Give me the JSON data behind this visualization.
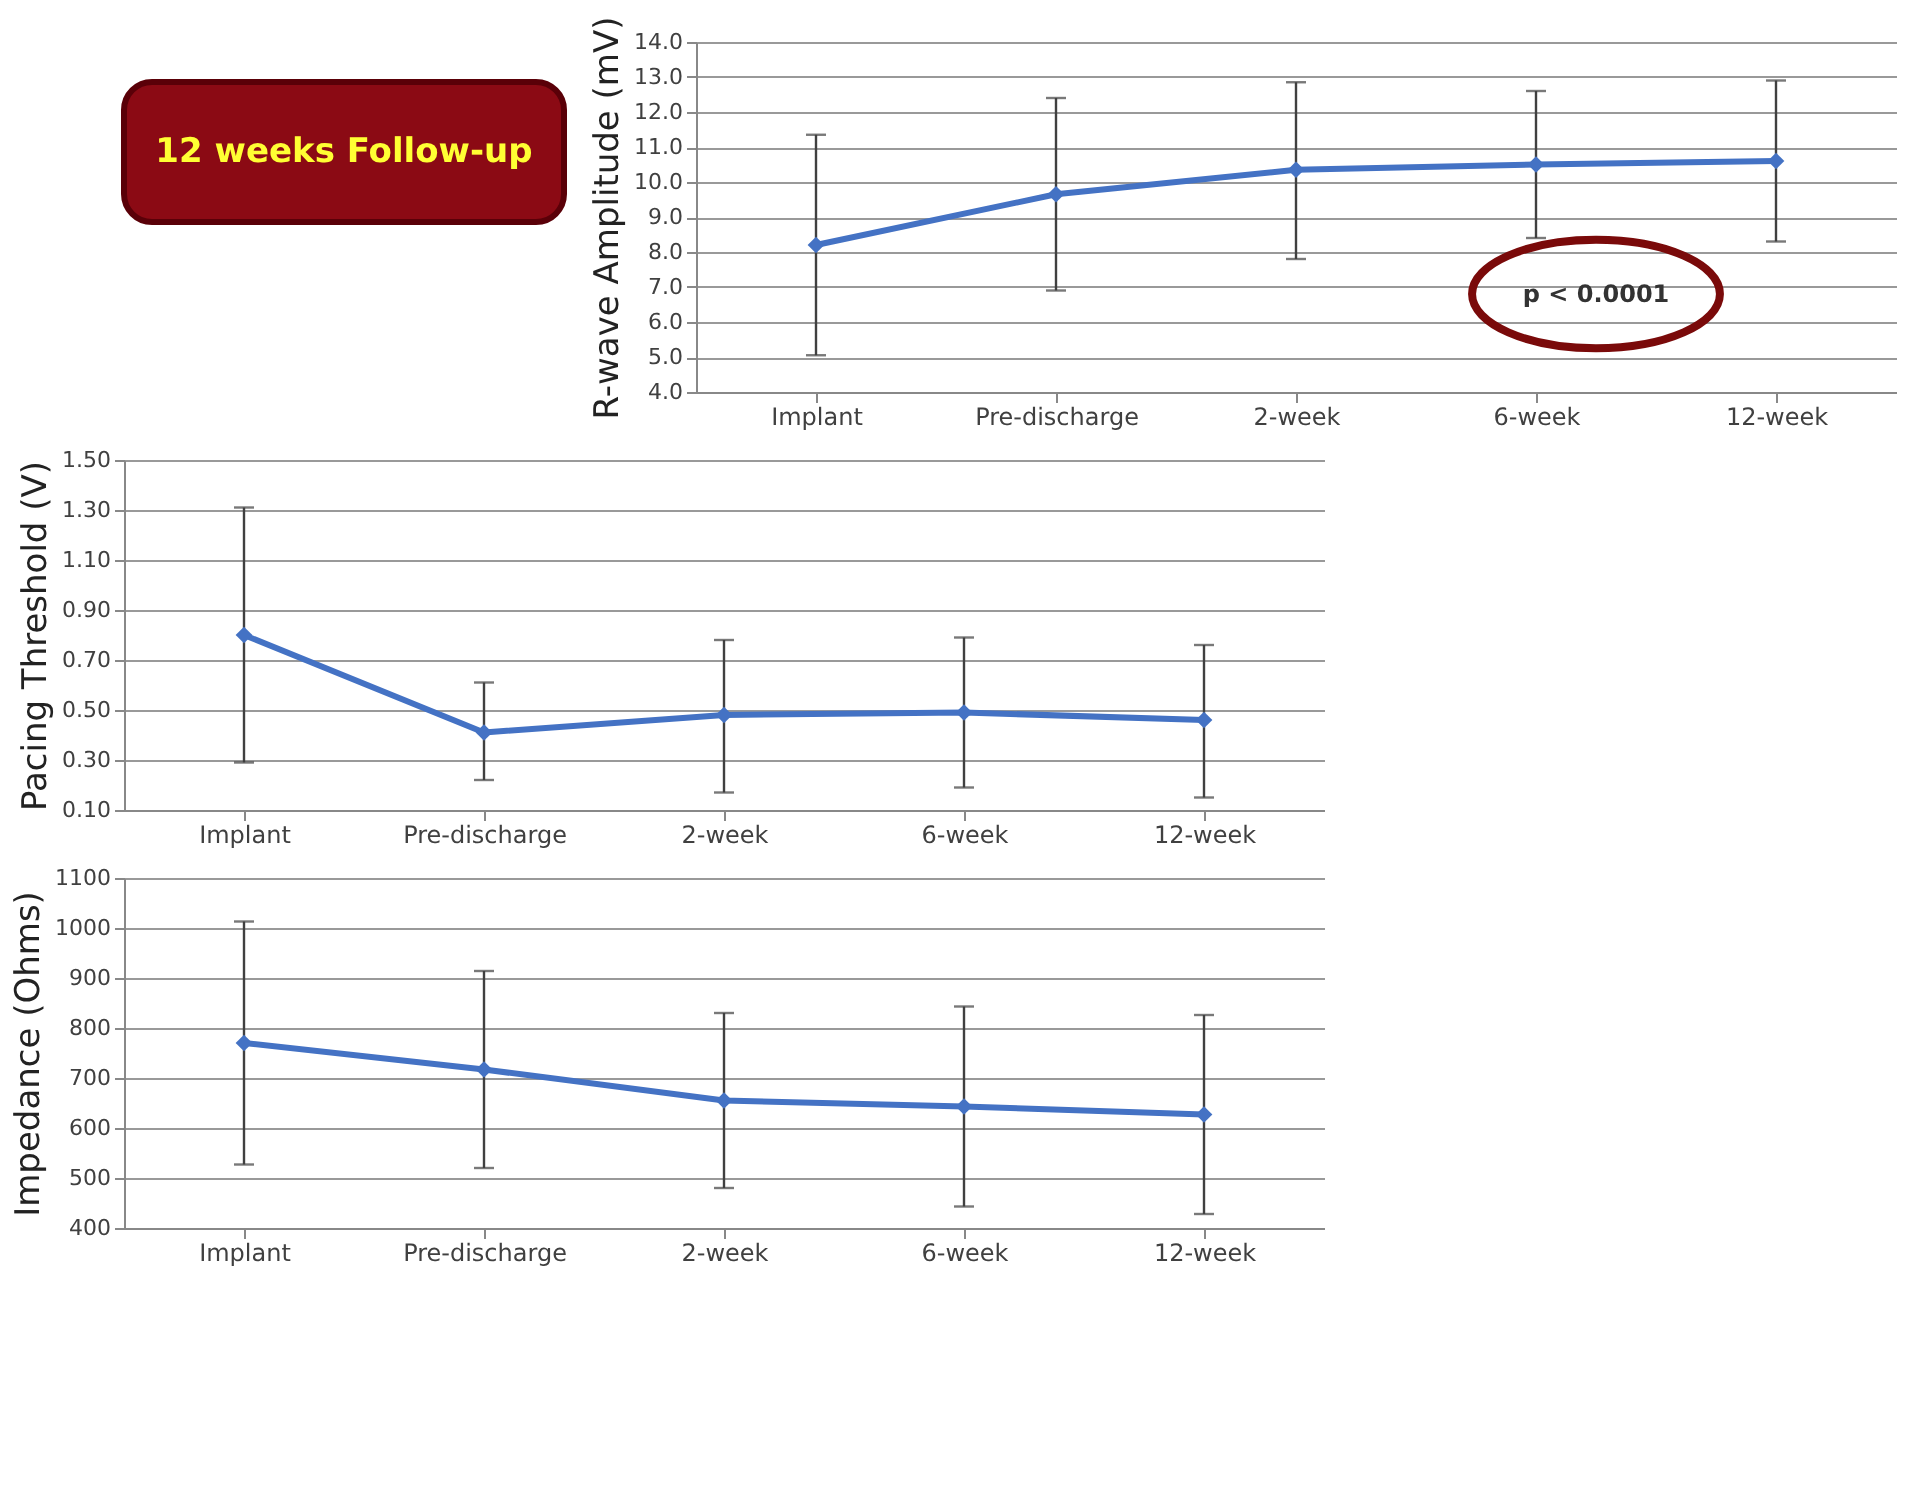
{
  "chart_data": [
    {
      "type": "line",
      "ylabel": "R-wave Amplitude  (mV)",
      "categories": [
        "Implant",
        "Pre-discharge",
        "2-week",
        "6-week",
        "12-week"
      ],
      "values": [
        8.2,
        9.65,
        10.35,
        10.5,
        10.6
      ],
      "errors": [
        [
          5.05,
          11.35
        ],
        [
          6.9,
          12.4
        ],
        [
          7.8,
          12.85
        ],
        [
          8.4,
          12.6
        ],
        [
          8.3,
          12.9
        ]
      ],
      "color": "#4472c4",
      "marker": "diamond",
      "ylim": [
        4,
        14
      ],
      "yticks": [
        {
          "value": 4,
          "label": "4.0"
        },
        {
          "value": 5,
          "label": "5.0"
        },
        {
          "value": 6,
          "label": "6.0"
        },
        {
          "value": 7,
          "label": "7.0"
        },
        {
          "value": 8,
          "label": "8.0"
        },
        {
          "value": 9,
          "label": "9.0"
        },
        {
          "value": 10,
          "label": "10.0"
        },
        {
          "value": 11,
          "label": "11.0"
        },
        {
          "value": 12,
          "label": "12.0"
        },
        {
          "value": 13,
          "label": "13.0"
        },
        {
          "value": 14,
          "label": "14.0"
        }
      ],
      "grid": "y",
      "annotations": [
        "12 weeks Follow-up",
        "p < 0.0001"
      ]
    },
    {
      "type": "line",
      "ylabel": "Pacing Threshold (V)",
      "categories": [
        "Implant",
        "Pre-discharge",
        "2-week",
        "6-week",
        "12-week"
      ],
      "values": [
        0.8,
        0.41,
        0.48,
        0.49,
        0.46
      ],
      "errors": [
        0.51,
        [
          0.22,
          0.61
        ],
        [
          0.17,
          0.78
        ],
        [
          0.19,
          0.79
        ],
        [
          0.15,
          0.76
        ]
      ],
      "color": "#4472c4",
      "marker": "diamond",
      "ylim": [
        0.1,
        1.5
      ],
      "yticks": [
        {
          "value": 0.1,
          "label": "0.10"
        },
        {
          "value": 0.3,
          "label": "0.30"
        },
        {
          "value": 0.5,
          "label": "0.50"
        },
        {
          "value": 0.7,
          "label": "0.70"
        },
        {
          "value": 0.9,
          "label": "0.90"
        },
        {
          "value": 1.1,
          "label": "1.10"
        },
        {
          "value": 1.3,
          "label": "1.30"
        },
        {
          "value": 1.5,
          "label": "1.50"
        }
      ],
      "grid": "y"
    },
    {
      "type": "line",
      "ylabel": "Impedance (Ohms)",
      "categories": [
        "Implant",
        "Pre-discharge",
        "2-week",
        "6-week",
        "12-week"
      ],
      "values": [
        770,
        717,
        655,
        643,
        627
      ],
      "errors": [
        243,
        197,
        175,
        200,
        199
      ],
      "color": "#4472c4",
      "marker": "diamond",
      "ylim": [
        400,
        1100
      ],
      "yticks": [
        400,
        500,
        600,
        700,
        800,
        900,
        1000,
        1100
      ],
      "grid": "y"
    }
  ]
}
